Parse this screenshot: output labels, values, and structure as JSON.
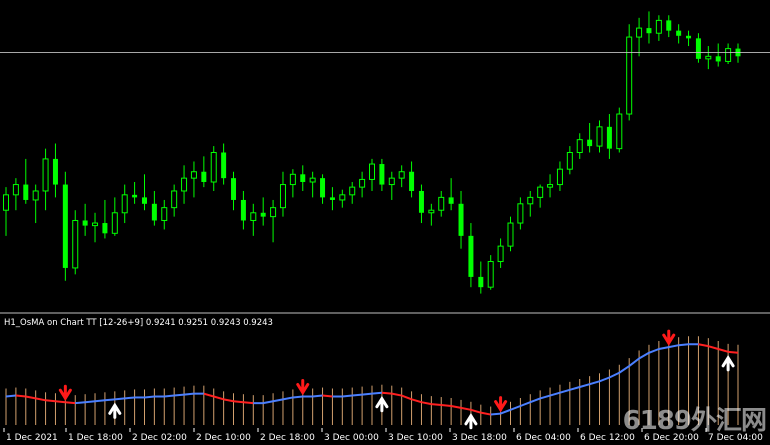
{
  "indicator": {
    "label": "H1_OsMA on Chart TT [12-26+9] 0.9241 0.9251 0.9243 0.9243"
  },
  "watermark": {
    "text": "6189外汇网"
  },
  "colors": {
    "background": "#000000",
    "candle": "#00ff00",
    "hline": "#c0c0c0",
    "separator": "#c0c0c0",
    "osma_up": "#4a7fff",
    "osma_down": "#ff2020",
    "histogram": "#d2a06e",
    "arrow_down": "#ff1a1a",
    "arrow_up": "#ffffff",
    "axis_text": "#ffffff"
  },
  "chart_data": [
    {
      "type": "candlestick",
      "x_ticks": [
        "1 Dec 2021",
        "1 Dec 18:00",
        "2 Dec 02:00",
        "2 Dec 10:00",
        "2 Dec 18:00",
        "3 Dec 00:00",
        "3 Dec 10:00",
        "3 Dec 18:00",
        "6 Dec 04:00",
        "6 Dec 12:00",
        "6 Dec 20:00",
        "7 Dec 04:00"
      ],
      "candles": [
        [
          0.912,
          0.9138,
          0.91,
          0.9132
        ],
        [
          0.9132,
          0.9145,
          0.912,
          0.914
        ],
        [
          0.914,
          0.916,
          0.9125,
          0.9128
        ],
        [
          0.9128,
          0.914,
          0.911,
          0.9135
        ],
        [
          0.9135,
          0.9168,
          0.912,
          0.916
        ],
        [
          0.916,
          0.9172,
          0.913,
          0.914
        ],
        [
          0.914,
          0.915,
          0.9065,
          0.9075
        ],
        [
          0.9075,
          0.912,
          0.907,
          0.9112
        ],
        [
          0.9112,
          0.9125,
          0.91,
          0.9108
        ],
        [
          0.9108,
          0.9118,
          0.9095,
          0.911
        ],
        [
          0.911,
          0.9128,
          0.9098,
          0.9102
        ],
        [
          0.9102,
          0.913,
          0.91,
          0.9118
        ],
        [
          0.9118,
          0.914,
          0.911,
          0.9132
        ],
        [
          0.9132,
          0.9142,
          0.9125,
          0.913
        ],
        [
          0.913,
          0.9148,
          0.912,
          0.9125
        ],
        [
          0.9125,
          0.9135,
          0.9108,
          0.9112
        ],
        [
          0.9112,
          0.9128,
          0.9105,
          0.9122
        ],
        [
          0.9122,
          0.914,
          0.9115,
          0.9135
        ],
        [
          0.9135,
          0.9155,
          0.9125,
          0.9145
        ],
        [
          0.9145,
          0.9158,
          0.913,
          0.915
        ],
        [
          0.915,
          0.9162,
          0.9138,
          0.9142
        ],
        [
          0.9142,
          0.917,
          0.9135,
          0.9165
        ],
        [
          0.9165,
          0.9172,
          0.914,
          0.9145
        ],
        [
          0.9145,
          0.915,
          0.912,
          0.9128
        ],
        [
          0.9128,
          0.9135,
          0.9105,
          0.9112
        ],
        [
          0.9112,
          0.9125,
          0.91,
          0.9118
        ],
        [
          0.9118,
          0.913,
          0.9108,
          0.9115
        ],
        [
          0.9115,
          0.9128,
          0.9095,
          0.9122
        ],
        [
          0.9122,
          0.915,
          0.9115,
          0.914
        ],
        [
          0.914,
          0.9152,
          0.913,
          0.9148
        ],
        [
          0.9148,
          0.9155,
          0.9135,
          0.9142
        ],
        [
          0.9142,
          0.915,
          0.913,
          0.9145
        ],
        [
          0.9145,
          0.9148,
          0.9125,
          0.913
        ],
        [
          0.913,
          0.9138,
          0.912,
          0.9128
        ],
        [
          0.9128,
          0.9136,
          0.9122,
          0.9132
        ],
        [
          0.9132,
          0.9142,
          0.9125,
          0.9138
        ],
        [
          0.9138,
          0.915,
          0.913,
          0.9144
        ],
        [
          0.9144,
          0.916,
          0.9135,
          0.9156
        ],
        [
          0.9156,
          0.916,
          0.9135,
          0.914
        ],
        [
          0.914,
          0.915,
          0.9128,
          0.9145
        ],
        [
          0.9145,
          0.9155,
          0.9138,
          0.915
        ],
        [
          0.915,
          0.9158,
          0.913,
          0.9135
        ],
        [
          0.9135,
          0.914,
          0.911,
          0.9118
        ],
        [
          0.9118,
          0.9125,
          0.9108,
          0.912
        ],
        [
          0.912,
          0.9135,
          0.9115,
          0.913
        ],
        [
          0.913,
          0.9145,
          0.912,
          0.9125
        ],
        [
          0.9125,
          0.9135,
          0.909,
          0.91
        ],
        [
          0.91,
          0.911,
          0.906,
          0.9068
        ],
        [
          0.9068,
          0.908,
          0.9055,
          0.906
        ],
        [
          0.906,
          0.9085,
          0.9058,
          0.908
        ],
        [
          0.908,
          0.9098,
          0.9075,
          0.9092
        ],
        [
          0.9092,
          0.9115,
          0.9088,
          0.911
        ],
        [
          0.911,
          0.913,
          0.9105,
          0.9125
        ],
        [
          0.9125,
          0.9135,
          0.9115,
          0.913
        ],
        [
          0.913,
          0.914,
          0.9122,
          0.9138
        ],
        [
          0.9138,
          0.9148,
          0.913,
          0.914
        ],
        [
          0.914,
          0.9158,
          0.9135,
          0.9152
        ],
        [
          0.9152,
          0.917,
          0.9148,
          0.9165
        ],
        [
          0.9165,
          0.918,
          0.916,
          0.9175
        ],
        [
          0.9175,
          0.9188,
          0.9165,
          0.917
        ],
        [
          0.917,
          0.919,
          0.9165,
          0.9185
        ],
        [
          0.9185,
          0.9195,
          0.916,
          0.9168
        ],
        [
          0.9168,
          0.92,
          0.9165,
          0.9195
        ],
        [
          0.9195,
          0.9265,
          0.919,
          0.9255
        ],
        [
          0.9255,
          0.927,
          0.924,
          0.9262
        ],
        [
          0.9262,
          0.9275,
          0.925,
          0.9258
        ],
        [
          0.9258,
          0.9272,
          0.9252,
          0.9268
        ],
        [
          0.9268,
          0.9272,
          0.9255,
          0.926
        ],
        [
          0.926,
          0.9265,
          0.925,
          0.9256
        ],
        [
          0.9256,
          0.926,
          0.9248,
          0.9254
        ],
        [
          0.9254,
          0.9258,
          0.9235,
          0.9238
        ],
        [
          0.9238,
          0.9248,
          0.923,
          0.924
        ],
        [
          0.924,
          0.925,
          0.9232,
          0.9236
        ],
        [
          0.9236,
          0.925,
          0.9234,
          0.9246
        ],
        [
          0.9246,
          0.925,
          0.9235,
          0.924
        ]
      ],
      "horizontal_line": 0.9243
    },
    {
      "type": "line",
      "name": "H1_OsMA on Chart TT [12-26+9]",
      "series": [
        {
          "values": [
            0.3,
            0.31,
            0.3,
            0.28,
            0.26,
            0.25,
            0.24,
            0.23,
            0.24,
            0.25,
            0.26,
            0.27,
            0.28,
            0.29,
            0.29,
            0.3,
            0.3,
            0.31,
            0.32,
            0.33,
            0.33,
            0.3,
            0.27,
            0.25,
            0.24,
            0.23,
            0.23,
            0.25,
            0.27,
            0.29,
            0.3,
            0.3,
            0.31,
            0.3,
            0.3,
            0.31,
            0.32,
            0.33,
            0.34,
            0.33,
            0.31,
            0.27,
            0.24,
            0.22,
            0.21,
            0.2,
            0.18,
            0.16,
            0.13,
            0.11,
            0.12,
            0.16,
            0.2,
            0.24,
            0.28,
            0.31,
            0.34,
            0.37,
            0.4,
            0.43,
            0.46,
            0.5,
            0.55,
            0.62,
            0.7,
            0.76,
            0.8,
            0.82,
            0.84,
            0.85,
            0.85,
            0.83,
            0.8,
            0.77,
            0.76
          ]
        }
      ],
      "signals": {
        "down": [
          6,
          30,
          50,
          67
        ],
        "up": [
          11,
          38,
          47,
          73
        ]
      }
    }
  ]
}
